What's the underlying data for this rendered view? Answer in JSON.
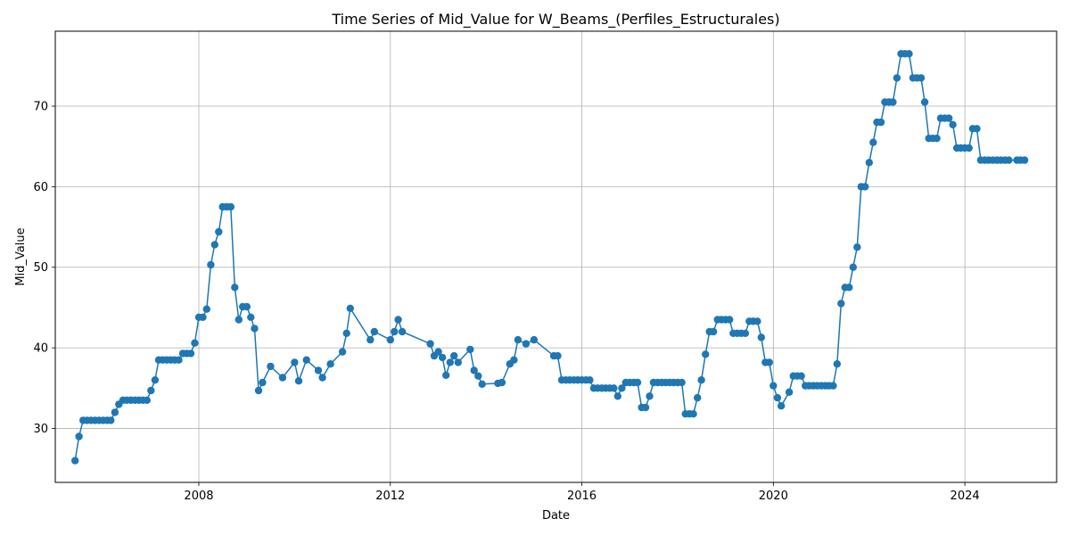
{
  "chart_data": {
    "type": "line",
    "title": "Time Series of Mid_Value for W_Beams_(Perfiles_Estructurales)",
    "xlabel": "Date",
    "ylabel": "Mid_Value",
    "xlim": [
      "2005-01-01",
      "2025-12-01"
    ],
    "ylim": [
      23.3,
      79.3
    ],
    "x_ticks": [
      {
        "date": "2008-01-01",
        "label": "2008"
      },
      {
        "date": "2012-01-01",
        "label": "2012"
      },
      {
        "date": "2016-01-01",
        "label": "2016"
      },
      {
        "date": "2020-01-01",
        "label": "2020"
      },
      {
        "date": "2024-01-01",
        "label": "2024"
      }
    ],
    "y_ticks": [
      30,
      40,
      50,
      60,
      70
    ],
    "grid": true,
    "marker": "circle",
    "series": [
      {
        "color": "#1f77b4",
        "points": [
          [
            "2005-06-01",
            26.0
          ],
          [
            "2005-07-01",
            29.0
          ],
          [
            "2005-08-01",
            31.0
          ],
          [
            "2005-09-01",
            31.0
          ],
          [
            "2005-10-01",
            31.0
          ],
          [
            "2005-11-01",
            31.0
          ],
          [
            "2005-12-01",
            31.0
          ],
          [
            "2006-01-01",
            31.0
          ],
          [
            "2006-02-01",
            31.0
          ],
          [
            "2006-03-01",
            31.0
          ],
          [
            "2006-04-01",
            32.0
          ],
          [
            "2006-05-01",
            33.0
          ],
          [
            "2006-06-01",
            33.5
          ],
          [
            "2006-07-01",
            33.5
          ],
          [
            "2006-08-01",
            33.5
          ],
          [
            "2006-09-01",
            33.5
          ],
          [
            "2006-10-01",
            33.5
          ],
          [
            "2006-11-01",
            33.5
          ],
          [
            "2006-12-01",
            33.5
          ],
          [
            "2007-01-01",
            34.7
          ],
          [
            "2007-02-01",
            36.0
          ],
          [
            "2007-03-01",
            38.5
          ],
          [
            "2007-04-01",
            38.5
          ],
          [
            "2007-05-01",
            38.5
          ],
          [
            "2007-06-01",
            38.5
          ],
          [
            "2007-07-01",
            38.5
          ],
          [
            "2007-08-01",
            38.5
          ],
          [
            "2007-09-01",
            39.3
          ],
          [
            "2007-10-01",
            39.3
          ],
          [
            "2007-11-01",
            39.3
          ],
          [
            "2007-12-01",
            40.6
          ],
          [
            "2008-01-01",
            43.8
          ],
          [
            "2008-02-01",
            43.8
          ],
          [
            "2008-03-01",
            44.8
          ],
          [
            "2008-04-01",
            50.3
          ],
          [
            "2008-05-01",
            52.8
          ],
          [
            "2008-06-01",
            54.4
          ],
          [
            "2008-07-01",
            57.5
          ],
          [
            "2008-08-01",
            57.5
          ],
          [
            "2008-09-01",
            57.5
          ],
          [
            "2008-10-01",
            47.5
          ],
          [
            "2008-11-01",
            43.5
          ],
          [
            "2008-12-01",
            45.1
          ],
          [
            "2009-01-01",
            45.1
          ],
          [
            "2009-02-01",
            43.8
          ],
          [
            "2009-03-01",
            42.4
          ],
          [
            "2009-04-01",
            34.7
          ],
          [
            "2009-05-01",
            35.7
          ],
          [
            "2009-07-01",
            37.7
          ],
          [
            "2009-10-01",
            36.3
          ],
          [
            "2010-01-01",
            38.2
          ],
          [
            "2010-02-01",
            35.9
          ],
          [
            "2010-04-01",
            38.5
          ],
          [
            "2010-07-01",
            37.2
          ],
          [
            "2010-08-01",
            36.3
          ],
          [
            "2010-10-01",
            38.0
          ],
          [
            "2011-01-01",
            39.5
          ],
          [
            "2011-02-01",
            41.8
          ],
          [
            "2011-03-01",
            44.9
          ],
          [
            "2011-08-01",
            41.0
          ],
          [
            "2011-09-01",
            42.0
          ],
          [
            "2012-01-01",
            41.0
          ],
          [
            "2012-02-01",
            42.0
          ],
          [
            "2012-03-01",
            43.5
          ],
          [
            "2012-04-01",
            42.0
          ],
          [
            "2012-11-01",
            40.5
          ],
          [
            "2012-12-01",
            39.0
          ],
          [
            "2013-01-01",
            39.5
          ],
          [
            "2013-02-01",
            38.8
          ],
          [
            "2013-03-01",
            36.6
          ],
          [
            "2013-04-01",
            38.2
          ],
          [
            "2013-05-01",
            39.0
          ],
          [
            "2013-06-01",
            38.2
          ],
          [
            "2013-09-01",
            39.8
          ],
          [
            "2013-10-01",
            37.2
          ],
          [
            "2013-11-01",
            36.5
          ],
          [
            "2013-12-01",
            35.5
          ],
          [
            "2014-04-01",
            35.6
          ],
          [
            "2014-05-01",
            35.7
          ],
          [
            "2014-07-01",
            38.0
          ],
          [
            "2014-08-01",
            38.5
          ],
          [
            "2014-09-01",
            41.0
          ],
          [
            "2014-11-01",
            40.5
          ],
          [
            "2015-01-01",
            41.0
          ],
          [
            "2015-06-01",
            39.0
          ],
          [
            "2015-07-01",
            39.0
          ],
          [
            "2015-08-01",
            36.0
          ],
          [
            "2015-09-01",
            36.0
          ],
          [
            "2015-10-01",
            36.0
          ],
          [
            "2015-11-01",
            36.0
          ],
          [
            "2015-12-01",
            36.0
          ],
          [
            "2016-01-01",
            36.0
          ],
          [
            "2016-02-01",
            36.0
          ],
          [
            "2016-03-01",
            36.0
          ],
          [
            "2016-04-01",
            35.0
          ],
          [
            "2016-05-01",
            35.0
          ],
          [
            "2016-06-01",
            35.0
          ],
          [
            "2016-07-01",
            35.0
          ],
          [
            "2016-08-01",
            35.0
          ],
          [
            "2016-09-01",
            35.0
          ],
          [
            "2016-10-01",
            34.0
          ],
          [
            "2016-11-01",
            35.0
          ],
          [
            "2016-12-01",
            35.7
          ],
          [
            "2017-01-01",
            35.7
          ],
          [
            "2017-02-01",
            35.7
          ],
          [
            "2017-03-01",
            35.7
          ],
          [
            "2017-04-01",
            32.6
          ],
          [
            "2017-05-01",
            32.6
          ],
          [
            "2017-06-01",
            34.0
          ],
          [
            "2017-07-01",
            35.7
          ],
          [
            "2017-08-01",
            35.7
          ],
          [
            "2017-09-01",
            35.7
          ],
          [
            "2017-10-01",
            35.7
          ],
          [
            "2017-11-01",
            35.7
          ],
          [
            "2017-12-01",
            35.7
          ],
          [
            "2018-01-01",
            35.7
          ],
          [
            "2018-02-01",
            35.7
          ],
          [
            "2018-03-01",
            31.8
          ],
          [
            "2018-04-01",
            31.8
          ],
          [
            "2018-05-01",
            31.8
          ],
          [
            "2018-06-01",
            33.8
          ],
          [
            "2018-07-01",
            36.0
          ],
          [
            "2018-08-01",
            39.2
          ],
          [
            "2018-09-01",
            42.0
          ],
          [
            "2018-10-01",
            42.0
          ],
          [
            "2018-11-01",
            43.5
          ],
          [
            "2018-12-01",
            43.5
          ],
          [
            "2019-01-01",
            43.5
          ],
          [
            "2019-02-01",
            43.5
          ],
          [
            "2019-03-01",
            41.8
          ],
          [
            "2019-04-01",
            41.8
          ],
          [
            "2019-05-01",
            41.8
          ],
          [
            "2019-06-01",
            41.8
          ],
          [
            "2019-07-01",
            43.3
          ],
          [
            "2019-08-01",
            43.3
          ],
          [
            "2019-09-01",
            43.3
          ],
          [
            "2019-10-01",
            41.3
          ],
          [
            "2019-11-01",
            38.2
          ],
          [
            "2019-12-01",
            38.2
          ],
          [
            "2020-01-01",
            35.3
          ],
          [
            "2020-02-01",
            33.8
          ],
          [
            "2020-03-01",
            32.8
          ],
          [
            "2020-05-01",
            34.5
          ],
          [
            "2020-06-01",
            36.5
          ],
          [
            "2020-07-01",
            36.5
          ],
          [
            "2020-08-01",
            36.5
          ],
          [
            "2020-09-01",
            35.3
          ],
          [
            "2020-10-01",
            35.3
          ],
          [
            "2020-11-01",
            35.3
          ],
          [
            "2020-12-01",
            35.3
          ],
          [
            "2021-01-01",
            35.3
          ],
          [
            "2021-02-01",
            35.3
          ],
          [
            "2021-03-01",
            35.3
          ],
          [
            "2021-04-01",
            35.3
          ],
          [
            "2021-05-01",
            38.0
          ],
          [
            "2021-06-01",
            45.5
          ],
          [
            "2021-07-01",
            47.5
          ],
          [
            "2021-08-01",
            47.5
          ],
          [
            "2021-09-01",
            50.0
          ],
          [
            "2021-10-01",
            52.5
          ],
          [
            "2021-11-01",
            60.0
          ],
          [
            "2021-12-01",
            60.0
          ],
          [
            "2022-01-01",
            63.0
          ],
          [
            "2022-02-01",
            65.5
          ],
          [
            "2022-03-01",
            68.0
          ],
          [
            "2022-04-01",
            68.0
          ],
          [
            "2022-05-01",
            70.5
          ],
          [
            "2022-06-01",
            70.5
          ],
          [
            "2022-07-01",
            70.5
          ],
          [
            "2022-08-01",
            73.5
          ],
          [
            "2022-09-01",
            76.5
          ],
          [
            "2022-10-01",
            76.5
          ],
          [
            "2022-11-01",
            76.5
          ],
          [
            "2022-12-01",
            73.5
          ],
          [
            "2023-01-01",
            73.5
          ],
          [
            "2023-02-01",
            73.5
          ],
          [
            "2023-03-01",
            70.5
          ],
          [
            "2023-04-01",
            66.0
          ],
          [
            "2023-05-01",
            66.0
          ],
          [
            "2023-06-01",
            66.0
          ],
          [
            "2023-07-01",
            68.5
          ],
          [
            "2023-08-01",
            68.5
          ],
          [
            "2023-09-01",
            68.5
          ],
          [
            "2023-10-01",
            67.7
          ],
          [
            "2023-11-01",
            64.8
          ],
          [
            "2023-12-01",
            64.8
          ],
          [
            "2024-01-01",
            64.8
          ],
          [
            "2024-02-01",
            64.8
          ],
          [
            "2024-03-01",
            67.2
          ],
          [
            "2024-04-01",
            67.2
          ],
          [
            "2024-05-01",
            63.3
          ],
          [
            "2024-06-01",
            63.3
          ],
          [
            "2024-07-01",
            63.3
          ],
          [
            "2024-08-01",
            63.3
          ],
          [
            "2024-09-01",
            63.3
          ],
          [
            "2024-10-01",
            63.3
          ],
          [
            "2024-11-01",
            63.3
          ],
          [
            "2024-12-01",
            63.3
          ],
          [
            "2025-02-01",
            63.3
          ],
          [
            "2025-03-01",
            63.3
          ],
          [
            "2025-04-01",
            63.3
          ]
        ]
      }
    ]
  }
}
